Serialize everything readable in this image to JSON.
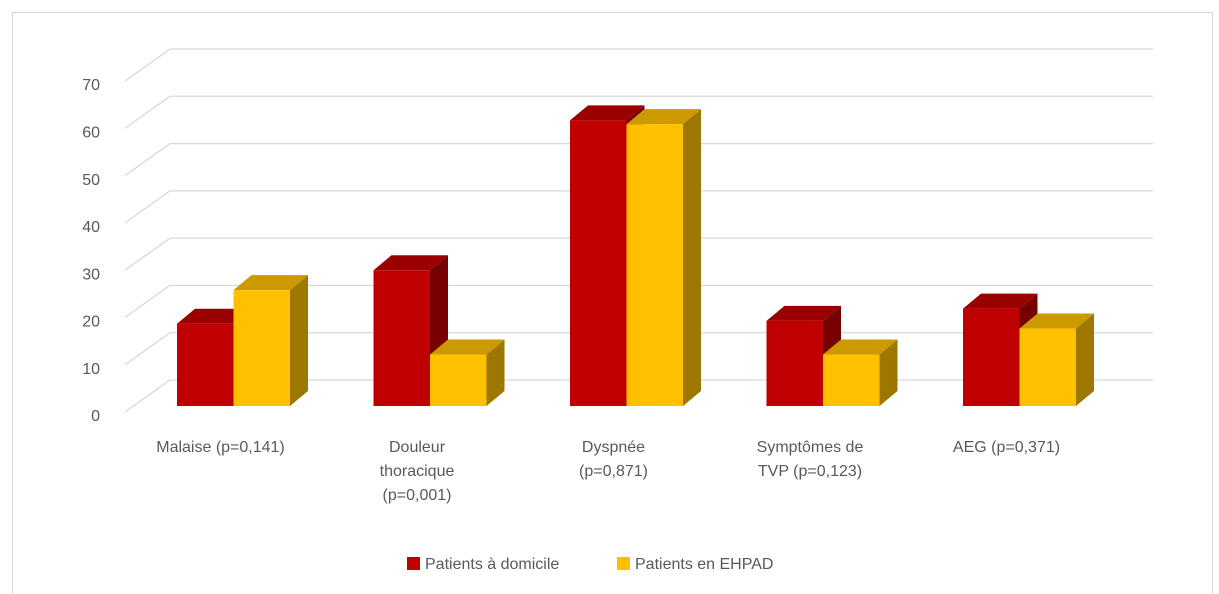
{
  "chart_data": {
    "type": "bar3d",
    "categories": [
      "Malaise (p=0,141)",
      "Douleur thoracique (p=0,001)",
      "Dyspnée (p=0,871)",
      "Symptômes de TVP (p=0,123)",
      "AEG (p=0,371)"
    ],
    "series": [
      {
        "name": "Patients à domicile",
        "color": "#c00000",
        "values": [
          17.4,
          28.7,
          60.4,
          18,
          20.6
        ]
      },
      {
        "name": "Patients en EHPAD",
        "color": "#ffc000",
        "values": [
          24.5,
          10.9,
          59.6,
          10.9,
          16.4
        ]
      }
    ],
    "ylim": [
      0,
      70
    ],
    "yticks": [
      0,
      10,
      20,
      30,
      40,
      50,
      60,
      70
    ],
    "grid": true,
    "legend": "bottom"
  }
}
